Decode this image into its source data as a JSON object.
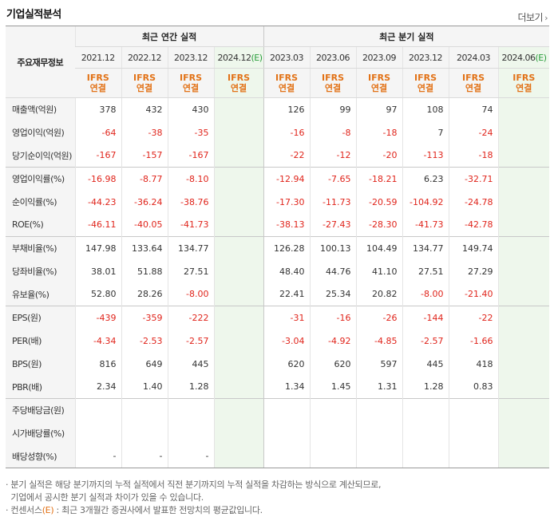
{
  "section_title": "기업실적분석",
  "more_link": "더보기",
  "header": {
    "corner_label": "주요재무정보",
    "annual_group": "최근 연간 실적",
    "quarter_group": "최근 분기 실적",
    "periods": [
      "2021.12",
      "2022.12",
      "2023.12",
      "2024.12",
      "2023.03",
      "2023.06",
      "2023.09",
      "2023.12",
      "2024.03",
      "2024.06"
    ],
    "estimate_suffix": "(E)",
    "basis_top": "IFRS",
    "basis_bottom": "연결"
  },
  "rows": [
    {
      "label": "매출액(억원)",
      "values": [
        "378",
        "432",
        "430",
        "",
        "126",
        "99",
        "97",
        "108",
        "74",
        ""
      ]
    },
    {
      "label": "영업이익(억원)",
      "values": [
        "-64",
        "-38",
        "-35",
        "",
        "-16",
        "-8",
        "-18",
        "7",
        "-24",
        ""
      ]
    },
    {
      "label": "당기순이익(억원)",
      "values": [
        "-167",
        "-157",
        "-167",
        "",
        "-22",
        "-12",
        "-20",
        "-113",
        "-18",
        ""
      ]
    },
    {
      "label": "영업이익률(%)",
      "values": [
        "-16.98",
        "-8.77",
        "-8.10",
        "",
        "-12.94",
        "-7.65",
        "-18.21",
        "6.23",
        "-32.71",
        ""
      ]
    },
    {
      "label": "순이익률(%)",
      "values": [
        "-44.23",
        "-36.24",
        "-38.76",
        "",
        "-17.30",
        "-11.73",
        "-20.59",
        "-104.92",
        "-24.78",
        ""
      ]
    },
    {
      "label": "ROE(%)",
      "values": [
        "-46.11",
        "-40.05",
        "-41.73",
        "",
        "-38.13",
        "-27.43",
        "-28.30",
        "-41.73",
        "-42.78",
        ""
      ]
    },
    {
      "label": "부채비율(%)",
      "values": [
        "147.98",
        "133.64",
        "134.77",
        "",
        "126.28",
        "100.13",
        "104.49",
        "134.77",
        "149.74",
        ""
      ]
    },
    {
      "label": "당좌비율(%)",
      "values": [
        "38.01",
        "51.88",
        "27.51",
        "",
        "48.40",
        "44.76",
        "41.10",
        "27.51",
        "27.29",
        ""
      ]
    },
    {
      "label": "유보율(%)",
      "values": [
        "52.80",
        "28.26",
        "-8.00",
        "",
        "22.41",
        "25.34",
        "20.82",
        "-8.00",
        "-21.40",
        ""
      ]
    },
    {
      "label": "EPS(원)",
      "values": [
        "-439",
        "-359",
        "-222",
        "",
        "-31",
        "-16",
        "-26",
        "-144",
        "-22",
        ""
      ]
    },
    {
      "label": "PER(배)",
      "values": [
        "-4.34",
        "-2.53",
        "-2.57",
        "",
        "-3.04",
        "-4.92",
        "-4.85",
        "-2.57",
        "-1.66",
        ""
      ]
    },
    {
      "label": "BPS(원)",
      "values": [
        "816",
        "649",
        "445",
        "",
        "620",
        "620",
        "597",
        "445",
        "418",
        ""
      ]
    },
    {
      "label": "PBR(배)",
      "values": [
        "2.34",
        "1.40",
        "1.28",
        "",
        "1.34",
        "1.45",
        "1.31",
        "1.28",
        "0.83",
        ""
      ]
    },
    {
      "label": "주당배당금(원)",
      "values": [
        "",
        "",
        "",
        "",
        "",
        "",
        "",
        "",
        "",
        ""
      ]
    },
    {
      "label": "시가배당률(%)",
      "values": [
        "",
        "",
        "",
        "",
        "",
        "",
        "",
        "",
        "",
        ""
      ]
    },
    {
      "label": "배당성향(%)",
      "values": [
        "-",
        "-",
        "-",
        "",
        "",
        "",
        "",
        "",
        "",
        ""
      ]
    }
  ],
  "notes": {
    "line1": "· 분기 실적은 해당 분기까지의 누적 실적에서 직전 분기까지의 누적 실적을 차감하는 방식으로 계산되므로,",
    "line2": "  기업에서 공시한 분기 실적과 차이가 있을 수 있습니다.",
    "line3_pre": "· 컨센서스",
    "line3_e": "(E)",
    "line3_post": " : 최근 3개월간 증권사에서 발표한 전망치의 평균값입니다."
  },
  "colors": {
    "negative": "#e0241b",
    "ifrs": "#e27217",
    "estimate_bg": "#eef7ec",
    "estimate_mark": "#2a9e3c"
  }
}
